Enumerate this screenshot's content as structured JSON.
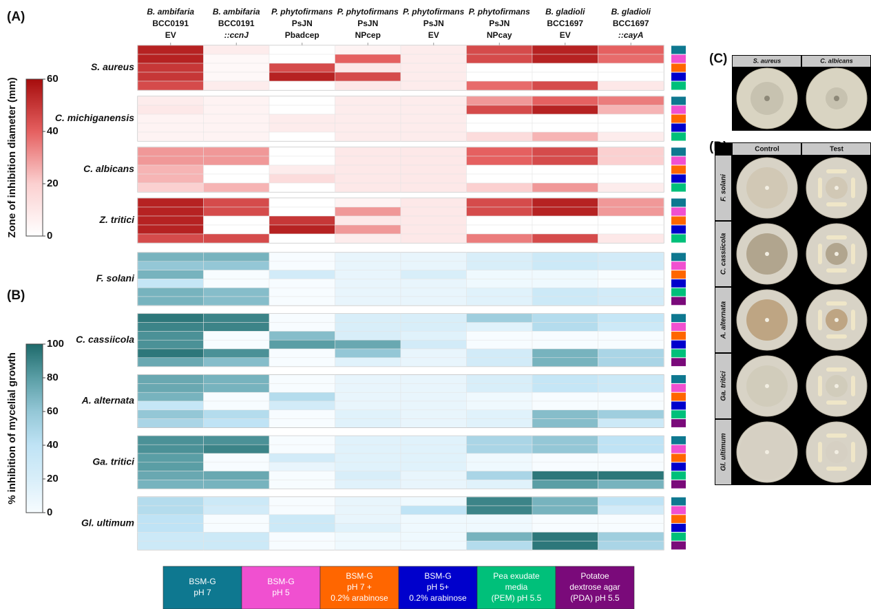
{
  "chart_data": [
    {
      "type": "heatmap",
      "panel": "(A)",
      "colorbar_label": "Zone of inhibition diameter (mm)",
      "ylim": [
        0,
        60
      ],
      "yticks": [
        0,
        20,
        40,
        60
      ],
      "cmap": [
        "#ffffff",
        "#fbd0d0",
        "#e56060",
        "#a60d0d"
      ],
      "categories": [
        [
          "B. ambifaria",
          "BCC0191",
          "EV"
        ],
        [
          "B. ambifaria",
          "BCC0191",
          "::ccnJ"
        ],
        [
          "P. phytofirmans",
          "PsJN",
          "Pbadcep"
        ],
        [
          "P. phytofirmans",
          "PsJN",
          "NPcep"
        ],
        [
          "P. phytofirmans",
          "PsJN",
          "EV"
        ],
        [
          "P. phytofirmans",
          "PsJN",
          "NPcay"
        ],
        [
          "B. gladioli",
          "BCC1697",
          "EV"
        ],
        [
          "B. gladioli",
          "BCC1697",
          "::cayA"
        ]
      ],
      "groups": [
        {
          "name": "S. aureus",
          "values": [
            [
              55,
              8,
              0,
              5,
              8,
              45,
              55,
              40
            ],
            [
              55,
              3,
              0,
              40,
              8,
              45,
              55,
              38
            ],
            [
              50,
              3,
              45,
              10,
              8,
              0,
              0,
              0
            ],
            [
              50,
              3,
              55,
              45,
              8,
              0,
              0,
              0
            ],
            [
              45,
              8,
              0,
              10,
              8,
              38,
              45,
              10
            ]
          ]
        },
        {
          "name": "C. michiganensis",
          "values": [
            [
              8,
              5,
              0,
              8,
              8,
              30,
              40,
              35
            ],
            [
              10,
              5,
              0,
              8,
              8,
              45,
              55,
              25
            ],
            [
              5,
              5,
              8,
              8,
              8,
              0,
              0,
              0
            ],
            [
              5,
              5,
              8,
              8,
              8,
              0,
              0,
              0
            ],
            [
              5,
              5,
              0,
              8,
              8,
              15,
              25,
              8
            ]
          ]
        },
        {
          "name": "C. albicans",
          "values": [
            [
              30,
              30,
              0,
              10,
              10,
              40,
              45,
              20
            ],
            [
              30,
              30,
              0,
              10,
              10,
              40,
              45,
              20
            ],
            [
              25,
              0,
              8,
              10,
              10,
              0,
              0,
              0
            ],
            [
              25,
              0,
              15,
              10,
              10,
              0,
              0,
              0
            ],
            [
              20,
              25,
              0,
              10,
              10,
              20,
              30,
              8
            ]
          ]
        },
        {
          "name": "Z. tritici",
          "values": [
            [
              55,
              45,
              0,
              5,
              10,
              45,
              55,
              30
            ],
            [
              55,
              45,
              0,
              30,
              10,
              45,
              55,
              30
            ],
            [
              55,
              0,
              50,
              10,
              10,
              0,
              0,
              0
            ],
            [
              55,
              0,
              55,
              30,
              10,
              0,
              0,
              0
            ],
            [
              45,
              45,
              0,
              8,
              10,
              35,
              45,
              10
            ]
          ]
        }
      ]
    },
    {
      "type": "heatmap",
      "panel": "(B)",
      "colorbar_label": "% inhibition of mycelial growth",
      "ylim": [
        0,
        100
      ],
      "yticks": [
        0,
        20,
        40,
        60,
        80,
        100
      ],
      "cmap": [
        "#f7fcff",
        "#d8eef9",
        "#bfe3f5",
        "#94c7d6",
        "#5a9ea5",
        "#1e6a6b"
      ],
      "groups": [
        {
          "name": "F. solani",
          "values": [
            [
              70,
              70,
              0,
              10,
              10,
              20,
              30,
              25
            ],
            [
              60,
              60,
              0,
              10,
              10,
              20,
              30,
              25
            ],
            [
              70,
              0,
              25,
              10,
              20,
              5,
              5,
              0
            ],
            [
              35,
              0,
              0,
              10,
              10,
              5,
              5,
              0
            ],
            [
              70,
              65,
              0,
              10,
              10,
              15,
              30,
              25
            ],
            [
              70,
              65,
              0,
              10,
              10,
              15,
              30,
              25
            ]
          ]
        },
        {
          "name": "C. cassiicola",
          "values": [
            [
              95,
              90,
              0,
              20,
              20,
              55,
              45,
              35
            ],
            [
              90,
              90,
              0,
              20,
              20,
              15,
              45,
              30
            ],
            [
              85,
              0,
              65,
              20,
              15,
              0,
              0,
              0
            ],
            [
              85,
              0,
              80,
              75,
              25,
              0,
              0,
              0
            ],
            [
              95,
              85,
              0,
              60,
              10,
              25,
              70,
              50
            ],
            [
              75,
              65,
              0,
              15,
              10,
              25,
              70,
              50
            ]
          ]
        },
        {
          "name": "A. alternata",
          "values": [
            [
              75,
              70,
              0,
              10,
              10,
              20,
              35,
              30
            ],
            [
              75,
              70,
              0,
              10,
              10,
              20,
              35,
              30
            ],
            [
              70,
              0,
              45,
              10,
              10,
              5,
              0,
              0
            ],
            [
              35,
              0,
              25,
              10,
              10,
              5,
              0,
              0
            ],
            [
              60,
              45,
              0,
              15,
              10,
              15,
              65,
              55
            ],
            [
              50,
              40,
              0,
              15,
              10,
              15,
              65,
              30
            ]
          ]
        },
        {
          "name": "Ga. tritici",
          "values": [
            [
              85,
              85,
              0,
              15,
              15,
              50,
              60,
              40
            ],
            [
              85,
              90,
              0,
              15,
              15,
              50,
              60,
              40
            ],
            [
              80,
              0,
              25,
              15,
              15,
              5,
              0,
              0
            ],
            [
              80,
              0,
              10,
              15,
              15,
              5,
              0,
              0
            ],
            [
              75,
              75,
              0,
              20,
              10,
              50,
              95,
              95
            ],
            [
              70,
              70,
              0,
              15,
              10,
              15,
              80,
              70
            ]
          ]
        },
        {
          "name": "Gl. ultimum",
          "values": [
            [
              45,
              30,
              0,
              10,
              5,
              90,
              70,
              40
            ],
            [
              45,
              25,
              0,
              10,
              40,
              90,
              70,
              25
            ],
            [
              40,
              0,
              30,
              10,
              5,
              5,
              0,
              0
            ],
            [
              40,
              0,
              30,
              15,
              5,
              5,
              0,
              0
            ],
            [
              30,
              30,
              0,
              5,
              5,
              70,
              95,
              55
            ],
            [
              30,
              30,
              0,
              5,
              5,
              45,
              95,
              50
            ]
          ]
        }
      ]
    }
  ],
  "legend": {
    "items": [
      {
        "label": [
          "BSM-G",
          "pH 7"
        ],
        "color": "#0e7890"
      },
      {
        "label": [
          "BSM-G",
          "pH 5"
        ],
        "color": "#f050d0"
      },
      {
        "label": [
          "BSM-G",
          "pH 7 +",
          "0.2% arabinose"
        ],
        "color": "#ff6600"
      },
      {
        "label": [
          "BSM-G",
          "pH 5+",
          "0.2% arabinose"
        ],
        "color": "#0000cc"
      },
      {
        "label": [
          "Pea exudate",
          "media",
          "(PEM) pH 5.5"
        ],
        "color": "#00c07a"
      },
      {
        "label": [
          "Potatoe",
          "dextrose agar",
          "(PDA) pH 5.5"
        ],
        "color": "#7a0a7a"
      }
    ]
  },
  "photo_panels": [
    {
      "panel": "(C)",
      "columns": [
        "S. aureus",
        "C. albicans"
      ]
    },
    {
      "panel": "(D)",
      "columns": [
        "Control",
        "Test"
      ],
      "rows": [
        "F. solani",
        "C. cassiicola",
        "A. alternata",
        "Ga. tritici",
        "Gl. ultimum"
      ]
    }
  ]
}
